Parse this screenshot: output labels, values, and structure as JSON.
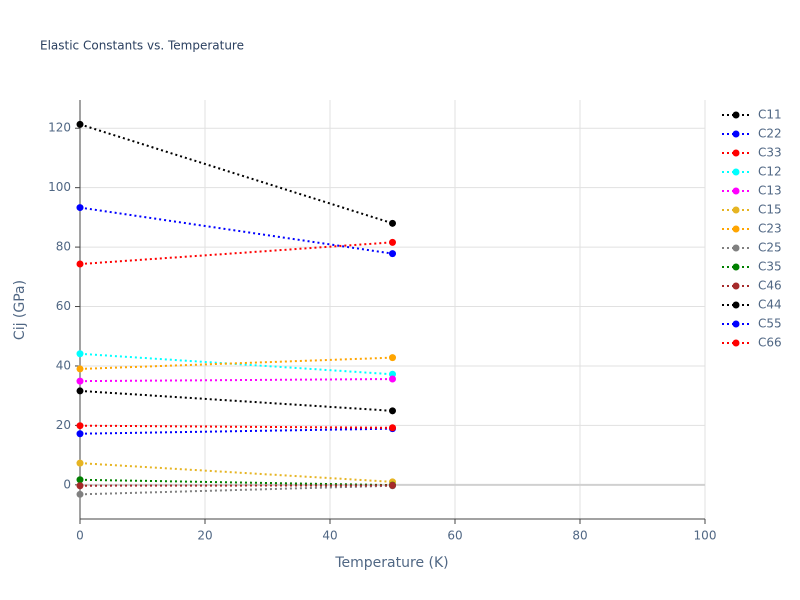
{
  "chart_data": {
    "type": "line",
    "title": "Elastic Constants vs. Temperature",
    "x_label": "Temperature (K)",
    "y_label": "Cij (GPa)",
    "x": [
      0,
      50
    ],
    "series": [
      {
        "name": "C11",
        "color": "#000000",
        "values": [
          121.3,
          88.0
        ]
      },
      {
        "name": "C22",
        "color": "#0000ff",
        "values": [
          93.3,
          77.8
        ]
      },
      {
        "name": "C33",
        "color": "#ff0000",
        "values": [
          74.3,
          81.6
        ]
      },
      {
        "name": "C12",
        "color": "#00ffff",
        "values": [
          44.1,
          37.2
        ]
      },
      {
        "name": "C13",
        "color": "#ff00ff",
        "values": [
          34.9,
          35.6
        ]
      },
      {
        "name": "C15",
        "color": "#e6b422",
        "values": [
          7.3,
          1.0
        ]
      },
      {
        "name": "C23",
        "color": "#ffa500",
        "values": [
          39.0,
          42.8
        ]
      },
      {
        "name": "C25",
        "color": "#808080",
        "values": [
          -3.2,
          -0.3
        ]
      },
      {
        "name": "C35",
        "color": "#008000",
        "values": [
          1.7,
          -0.1
        ]
      },
      {
        "name": "C46",
        "color": "#a52a2a",
        "values": [
          -0.3,
          -0.2
        ]
      },
      {
        "name": "C44",
        "color": "#000000",
        "values": [
          31.6,
          24.9
        ]
      },
      {
        "name": "C55",
        "color": "#0000ff",
        "values": [
          17.2,
          18.9
        ]
      },
      {
        "name": "C66",
        "color": "#ff0000",
        "values": [
          19.9,
          19.2
        ]
      }
    ],
    "xlim": [
      0,
      100
    ],
    "xticks": [
      0,
      20,
      40,
      60,
      80,
      100
    ],
    "ylim": [
      -11.5,
      129.5
    ],
    "yticks": [
      0,
      20,
      40,
      60,
      80,
      100,
      120
    ],
    "grid": true
  }
}
